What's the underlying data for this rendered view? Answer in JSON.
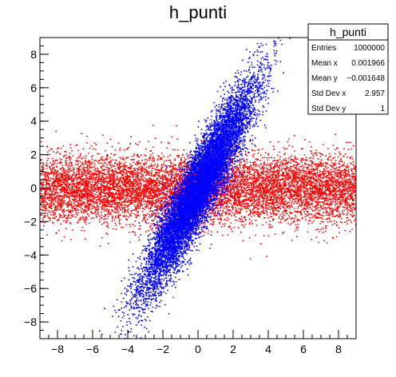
{
  "title": "h_punti",
  "chart_data": {
    "type": "scatter",
    "title": "h_punti",
    "xlim": [
      -9,
      9
    ],
    "ylim": [
      -9,
      9
    ],
    "x_ticks": [
      -8,
      -6,
      -4,
      -2,
      0,
      2,
      4,
      6,
      8
    ],
    "y_ticks": [
      -8,
      -6,
      -4,
      -2,
      0,
      2,
      4,
      6,
      8
    ],
    "grid": false,
    "series": [
      {
        "color": "#ff0000",
        "distribution": "horizontal band",
        "x_range": [
          -9,
          9
        ],
        "y_center": 0,
        "y_spread": 3
      },
      {
        "color": "#0000ff",
        "distribution": "diagonal ellipse",
        "center": [
          0,
          0
        ],
        "slope": 1.8,
        "x_range": [
          -4.5,
          4.5
        ],
        "y_range": [
          -9,
          9
        ]
      }
    ]
  },
  "stats_box": {
    "title": "h_punti",
    "rows": [
      {
        "label": "Entries",
        "value": "1000000"
      },
      {
        "label": "Mean x",
        "value": "0.001966"
      },
      {
        "label": "Mean y",
        "value": "−0.001648"
      },
      {
        "label": "Std Dev x",
        "value": "2.957"
      },
      {
        "label": "Std Dev y",
        "value": "1"
      }
    ]
  }
}
